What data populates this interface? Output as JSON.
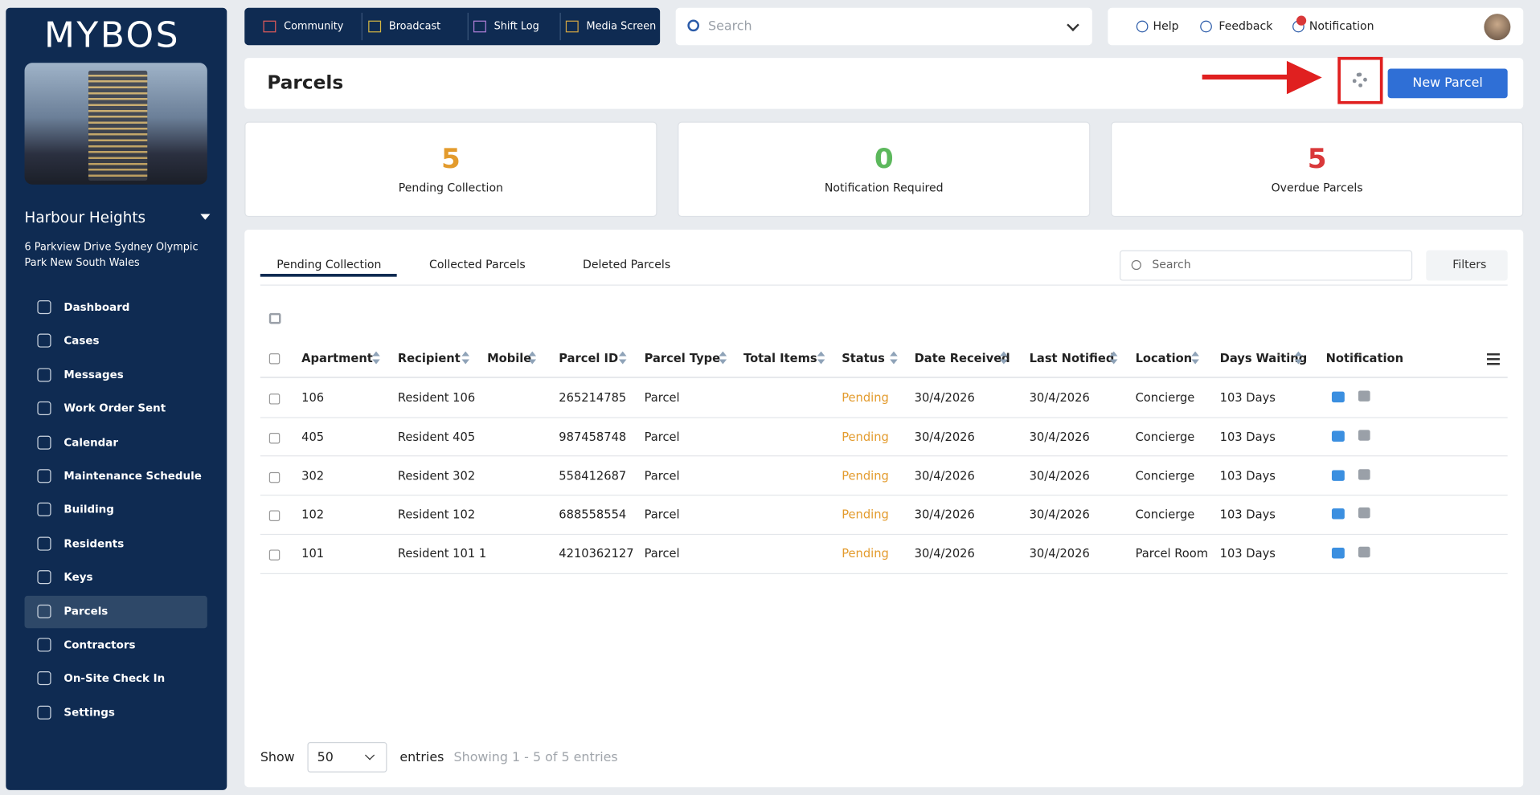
{
  "sidebar": {
    "logo": "MYBOS",
    "building": "Harbour Heights",
    "address": "6 Parkview Drive Sydney Olympic Park New South Wales",
    "nav": [
      "Dashboard",
      "Cases",
      "Messages",
      "Work Order Sent",
      "Calendar",
      "Maintenance Schedule",
      "Building",
      "Residents",
      "Keys",
      "Parcels",
      "Contractors",
      "On-Site Check In",
      "Settings"
    ]
  },
  "topbar": {
    "tabs": [
      "Community",
      "Broadcast",
      "Shift Log",
      "Media Screen"
    ],
    "search": "Search",
    "links": [
      "Help",
      "Feedback",
      "Notification"
    ]
  },
  "header": {
    "title": "Parcels",
    "button": "New Parcel"
  },
  "stats": [
    {
      "value": 5,
      "label": "Pending Collection"
    },
    {
      "value": 0,
      "label": "Notification Required"
    },
    {
      "value": 5,
      "label": "Overdue Parcels"
    }
  ],
  "tabs": [
    "Pending Collection",
    "Collected Parcels",
    "Deleted Parcels"
  ],
  "table_search": "Search",
  "filters": "Filters",
  "table": {
    "columns": [
      "Apartment",
      "Recipient",
      "Mobile",
      "Parcel ID",
      "Parcel Type",
      "Total Items",
      "Status",
      "Date Received",
      "Last Notified",
      "Location",
      "Days Waiting",
      "Notification"
    ],
    "rows": [
      [
        "106",
        "Resident 106",
        null,
        "265214785",
        "Parcel",
        null,
        "Pending",
        "30/4/2026",
        "30/4/2026",
        "Concierge",
        "103 Days"
      ],
      [
        "405",
        "Resident 405",
        null,
        "987458748",
        "Parcel",
        null,
        "Pending",
        "30/4/2026",
        "30/4/2026",
        "Concierge",
        "103 Days"
      ],
      [
        "302",
        "Resident 302",
        null,
        "558412687",
        "Parcel",
        null,
        "Pending",
        "30/4/2026",
        "30/4/2026",
        "Concierge",
        "103 Days"
      ],
      [
        "102",
        "Resident 102",
        null,
        "688558554",
        "Parcel",
        null,
        "Pending",
        "30/4/2026",
        "30/4/2026",
        "Concierge",
        "103 Days"
      ],
      [
        "101",
        "Resident 101 1",
        null,
        "4210362127",
        "Parcel",
        null,
        "Pending",
        "30/4/2026",
        "30/4/2026",
        "Parcel Room",
        "103 Days"
      ]
    ]
  },
  "footer": {
    "show": "Show",
    "page_size": "50",
    "entries": "entries",
    "summary": "Showing 1 - 5 of 5 entries"
  }
}
